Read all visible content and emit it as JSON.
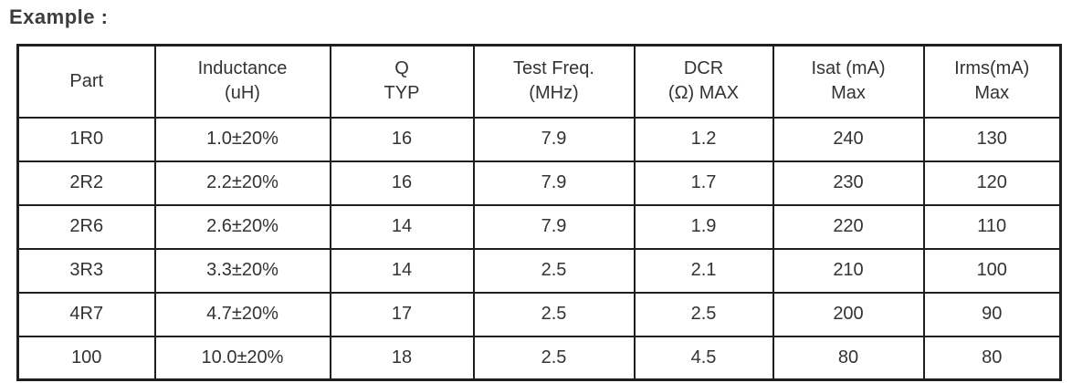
{
  "page": {
    "title": "Example :"
  },
  "colors": {
    "text": "#333333",
    "border": "#1f1f1f",
    "background": "#ffffff"
  },
  "table": {
    "columns": [
      {
        "id": "part",
        "lines": [
          "Part"
        ]
      },
      {
        "id": "inductance",
        "lines": [
          "Inductance",
          "(uH)"
        ]
      },
      {
        "id": "q-typ",
        "lines": [
          "Q",
          "TYP"
        ]
      },
      {
        "id": "test-freq",
        "lines": [
          "Test Freq.",
          "(MHz)"
        ]
      },
      {
        "id": "dcr",
        "lines": [
          "DCR",
          "(Ω) MAX"
        ]
      },
      {
        "id": "isat",
        "lines": [
          "Isat (mA)",
          "Max"
        ]
      },
      {
        "id": "irms",
        "lines": [
          "Irms(mA)",
          "Max"
        ]
      }
    ],
    "rows": [
      [
        "1R0",
        "1.0±20%",
        "16",
        "7.9",
        "1.2",
        "240",
        "130"
      ],
      [
        "2R2",
        "2.2±20%",
        "16",
        "7.9",
        "1.7",
        "230",
        "120"
      ],
      [
        "2R6",
        "2.6±20%",
        "14",
        "7.9",
        "1.9",
        "220",
        "110"
      ],
      [
        "3R3",
        "3.3±20%",
        "14",
        "2.5",
        "2.1",
        "210",
        "100"
      ],
      [
        "4R7",
        "4.7±20%",
        "17",
        "2.5",
        "2.5",
        "200",
        "90"
      ],
      [
        "100",
        "10.0±20%",
        "18",
        "2.5",
        "4.5",
        "80",
        "80"
      ]
    ]
  }
}
